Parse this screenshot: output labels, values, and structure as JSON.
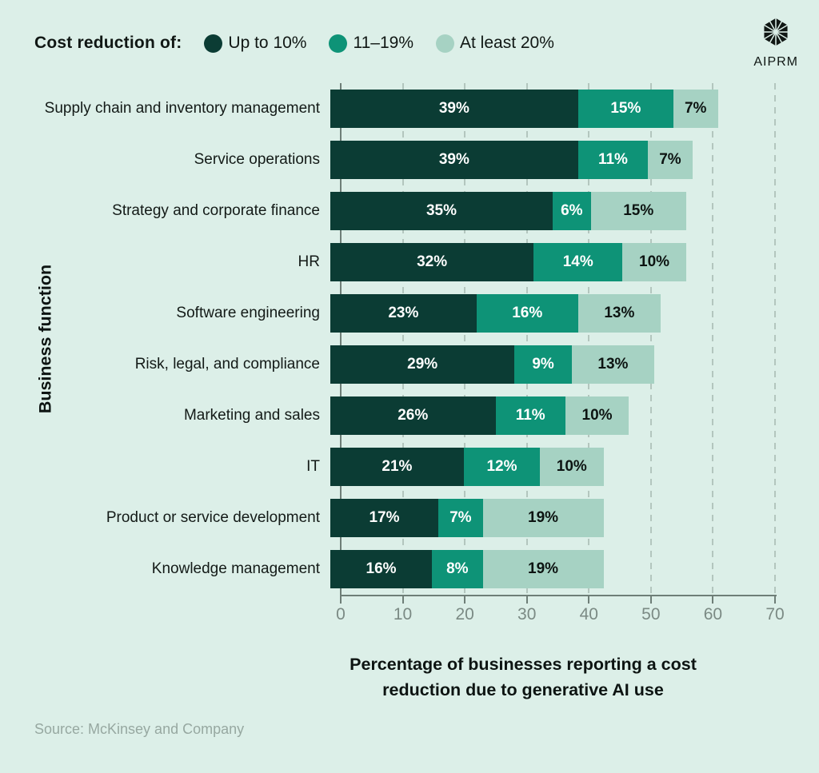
{
  "page": {
    "background": "#dcefe8"
  },
  "header": {
    "legend_title": "Cost reduction of:",
    "legend": [
      {
        "label": "Up to 10%",
        "color": "#0b3c34"
      },
      {
        "label": "11–19%",
        "color": "#0e9377"
      },
      {
        "label": "At least 20%",
        "color": "#a6d2c3"
      }
    ],
    "logo_text": "AIPRM"
  },
  "chart_data": {
    "type": "bar",
    "stacked": true,
    "orientation": "horizontal",
    "categories": [
      "Supply chain and inventory management",
      "Service operations",
      "Strategy and corporate finance",
      "HR",
      "Software engineering",
      "Risk, legal, and compliance",
      "Marketing and sales",
      "IT",
      "Product or service development",
      "Knowledge management"
    ],
    "series": [
      {
        "name": "Up to 10%",
        "color": "#0b3c34",
        "label_color": "#ffffff",
        "values": [
          39,
          39,
          35,
          32,
          23,
          29,
          26,
          21,
          17,
          16
        ]
      },
      {
        "name": "11–19%",
        "color": "#0e9377",
        "label_color": "#ffffff",
        "values": [
          15,
          11,
          6,
          14,
          16,
          9,
          11,
          12,
          7,
          8
        ]
      },
      {
        "name": "At least 20%",
        "color": "#a6d2c3",
        "label_color": "#0d1412",
        "values": [
          7,
          7,
          15,
          10,
          13,
          13,
          10,
          10,
          19,
          19
        ]
      }
    ],
    "value_suffix": "%",
    "xlabel": "Percentage of businesses reporting a cost reduction due to generative AI use",
    "ylabel": "Business function",
    "xlim": [
      0,
      70
    ],
    "xticks": [
      0,
      10,
      20,
      30,
      40,
      50,
      60,
      70
    ],
    "grid": "dashed-vertical",
    "legend_position": "top"
  },
  "axis": {
    "title_line1": "Percentage of businesses reporting a cost",
    "title_line2": "reduction due to generative AI use",
    "y_title": "Business function"
  },
  "footer": {
    "source": "Source: McKinsey and Company"
  }
}
